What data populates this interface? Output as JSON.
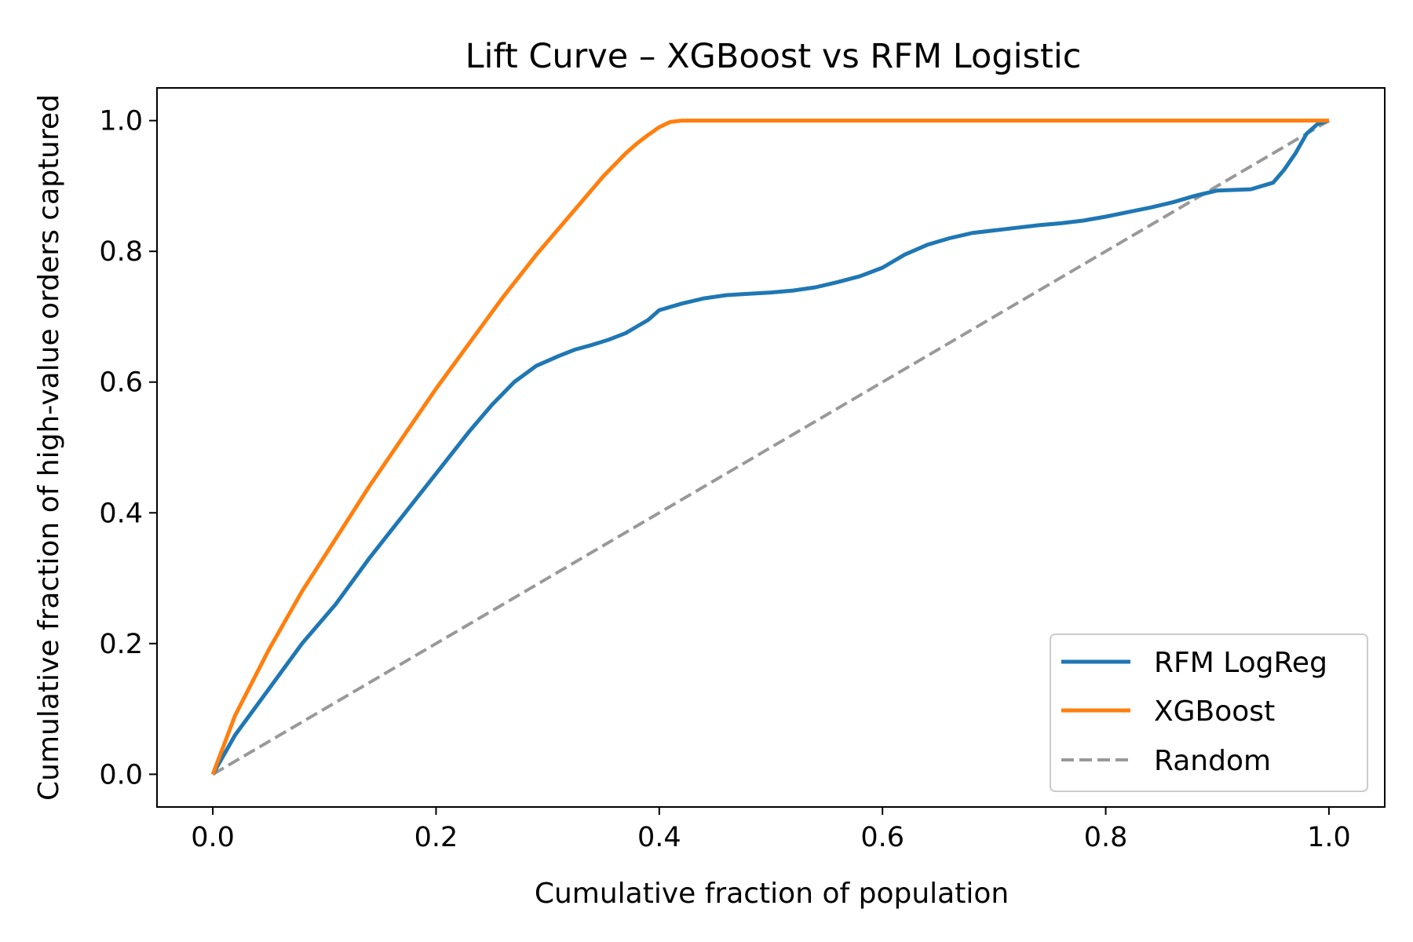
{
  "chart_data": {
    "type": "line",
    "title": "Lift Curve – XGBoost vs RFM Logistic",
    "xlabel": "Cumulative fraction of population",
    "ylabel": "Cumulative fraction of high-value orders captured",
    "xlim": [
      -0.05,
      1.05
    ],
    "ylim": [
      -0.05,
      1.05
    ],
    "xticks": [
      0.0,
      0.2,
      0.4,
      0.6,
      0.8,
      1.0
    ],
    "yticks": [
      0.0,
      0.2,
      0.4,
      0.6,
      0.8,
      1.0
    ],
    "xtick_labels": [
      "0.0",
      "0.2",
      "0.4",
      "0.6",
      "0.8",
      "1.0"
    ],
    "ytick_labels": [
      "0.0",
      "0.2",
      "0.4",
      "0.6",
      "0.8",
      "1.0"
    ],
    "grid": false,
    "legend_position": "lower-right",
    "series": [
      {
        "name": "RFM LogReg",
        "color": "#1f77b4",
        "style": "solid",
        "x": [
          0.0,
          0.02,
          0.05,
          0.08,
          0.11,
          0.14,
          0.17,
          0.2,
          0.23,
          0.25,
          0.27,
          0.29,
          0.31,
          0.325,
          0.34,
          0.355,
          0.37,
          0.38,
          0.39,
          0.4,
          0.42,
          0.44,
          0.46,
          0.48,
          0.5,
          0.52,
          0.54,
          0.56,
          0.58,
          0.6,
          0.62,
          0.64,
          0.66,
          0.68,
          0.7,
          0.72,
          0.74,
          0.76,
          0.78,
          0.8,
          0.82,
          0.84,
          0.86,
          0.88,
          0.9,
          0.93,
          0.95,
          0.96,
          0.97,
          0.98,
          0.99,
          1.0
        ],
        "y": [
          0.0,
          0.06,
          0.13,
          0.2,
          0.26,
          0.33,
          0.395,
          0.46,
          0.525,
          0.565,
          0.6,
          0.625,
          0.64,
          0.65,
          0.657,
          0.665,
          0.675,
          0.685,
          0.695,
          0.71,
          0.72,
          0.728,
          0.733,
          0.735,
          0.737,
          0.74,
          0.745,
          0.753,
          0.762,
          0.775,
          0.795,
          0.81,
          0.82,
          0.828,
          0.832,
          0.836,
          0.84,
          0.843,
          0.847,
          0.853,
          0.86,
          0.867,
          0.875,
          0.885,
          0.893,
          0.895,
          0.905,
          0.925,
          0.95,
          0.98,
          0.995,
          1.0
        ]
      },
      {
        "name": "XGBoost",
        "color": "#ff7f0e",
        "style": "solid",
        "x": [
          0.0,
          0.02,
          0.05,
          0.08,
          0.11,
          0.14,
          0.17,
          0.2,
          0.23,
          0.26,
          0.29,
          0.32,
          0.35,
          0.37,
          0.38,
          0.39,
          0.4,
          0.41,
          0.42,
          0.43,
          0.5,
          0.6,
          0.7,
          0.8,
          0.9,
          1.0
        ],
        "y": [
          0.0,
          0.09,
          0.19,
          0.28,
          0.36,
          0.44,
          0.515,
          0.59,
          0.66,
          0.73,
          0.795,
          0.855,
          0.915,
          0.95,
          0.965,
          0.978,
          0.99,
          0.998,
          1.0,
          1.0,
          1.0,
          1.0,
          1.0,
          1.0,
          1.0,
          1.0
        ]
      },
      {
        "name": "Random",
        "color": "#999999",
        "style": "dashed",
        "x": [
          0.0,
          1.0
        ],
        "y": [
          0.0,
          1.0
        ]
      }
    ]
  }
}
